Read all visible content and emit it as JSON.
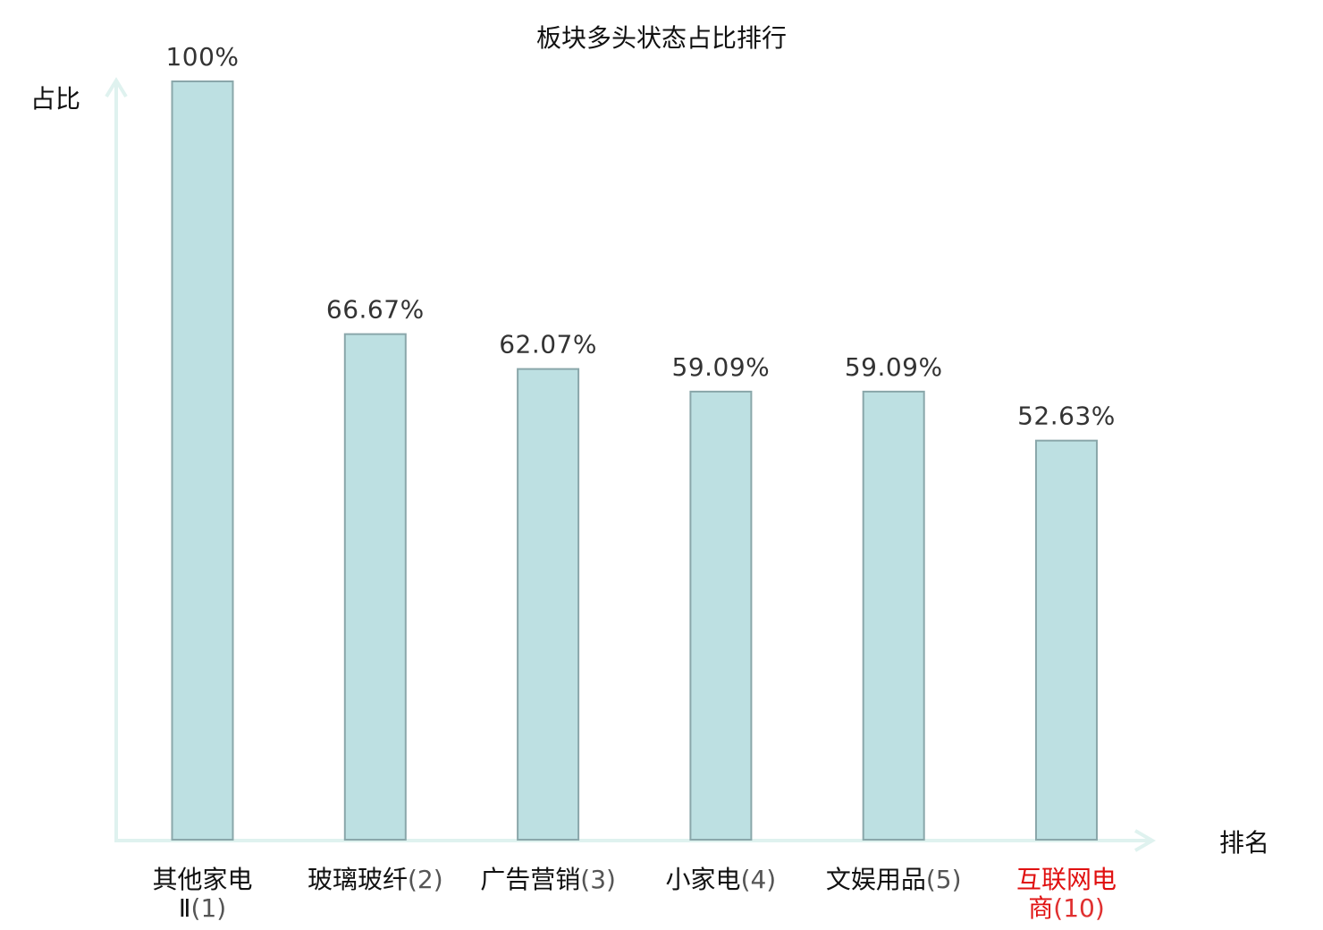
{
  "chart_data": {
    "type": "bar",
    "title": "板块多头状态占比排行",
    "xlabel": "排名",
    "ylabel": "占比",
    "ylim": [
      0,
      100
    ],
    "grid": false,
    "categories": [
      "其他家电Ⅱ",
      "玻璃玻纤",
      "广告营销",
      "小家电",
      "文娱用品",
      "互联网电商"
    ],
    "ranks": [
      "(1)",
      "(2)",
      "(3)",
      "(4)",
      "(5)",
      "(10)"
    ],
    "values": [
      100,
      66.67,
      62.07,
      59.09,
      59.09,
      52.63
    ],
    "value_labels": [
      "100%",
      "66.67%",
      "62.07%",
      "59.09%",
      "59.09%",
      "52.63%"
    ],
    "highlight_index": 5,
    "colors": {
      "bar_fill": "#bde0e2",
      "bar_stroke": "#8aa7aa",
      "axis": "#dff2ef",
      "highlight": "#e01010"
    }
  }
}
